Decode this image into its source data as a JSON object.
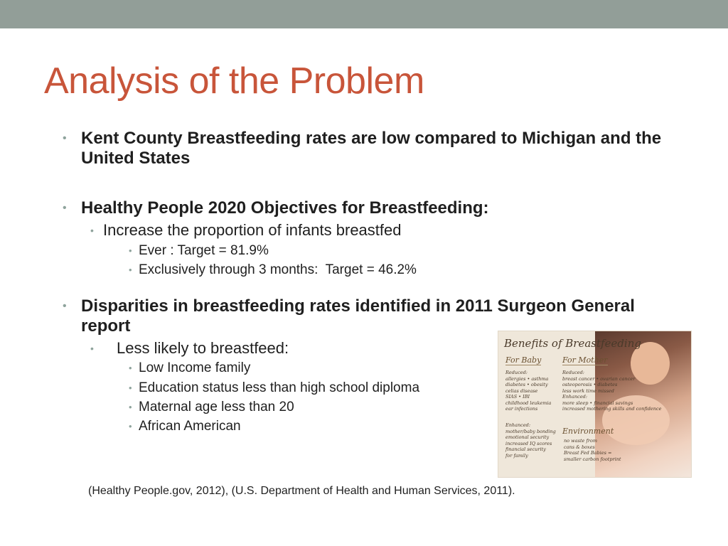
{
  "slide": {
    "title": "Analysis of the Problem",
    "bullets": [
      {
        "text": "Kent County Breastfeeding rates are low compared to Michigan and the United States"
      },
      {
        "text": "Healthy People 2020 Objectives for Breastfeeding:",
        "sub": "Increase the proportion of infants breastfed",
        "subsub": [
          "Ever : Target = 81.9%",
          "Exclusively through 3 months:  Target = 46.2%"
        ]
      },
      {
        "text": "Disparities in breastfeeding rates identified in 2011 Surgeon General report",
        "sub": "Less likely to breastfeed:",
        "subsub": [
          "Low Income family",
          "Education status less than high school diploma",
          "Maternal age less than 20",
          "African American"
        ]
      }
    ],
    "citation": "(Healthy People.gov, 2012), (U.S. Department of Health and Human Services, 2011)."
  },
  "image": {
    "title": "Benefits of Breastfeeding",
    "baby_heading": "For Baby",
    "mother_heading": "For Mother",
    "baby_list": "Reduced:\nallergies • asthma\ndiabetes • obesity\ncelias disease\nSIAS • IBI\nchildhood leukemia\near infections",
    "baby_list2": "Enhanced:\nmother/baby bonding\nemotional security\nincreased IQ scores\nfinancial security\nfor family",
    "mother_list": "Reduced:\nbreast cancer • ovarian cancer\nosteoporosis • diabetes\nless work time missed\nEnhanced:\nmore sleep • financial savings\nincreased mothering skills and confidence",
    "env_heading": "Environment",
    "env_list": "no waste from\ncans & boxes\nBreast Fed Babies =\nsmaller carbon footprint"
  },
  "colors": {
    "title": "#c8553a",
    "top_bar": "#929e98",
    "bullet_dot": "#8ea39c"
  }
}
